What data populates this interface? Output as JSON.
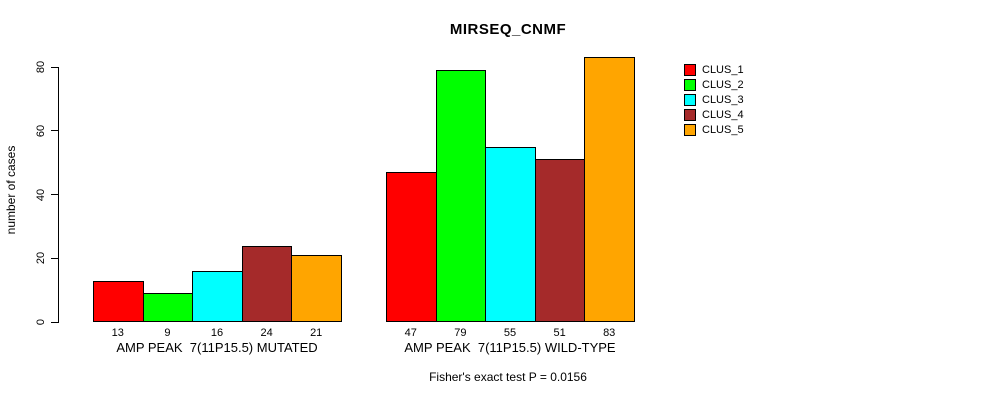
{
  "chart_data": {
    "type": "bar",
    "title": "MIRSEQ_CNMF",
    "ylabel": "number of cases",
    "ylim": [
      0,
      80
    ],
    "yticks": [
      0,
      20,
      40,
      60,
      80
    ],
    "grid": false,
    "legend_position": "top-right-outside",
    "bar_value_labels_shown": true,
    "categories": [
      "AMP PEAK  7(11P15.5) MUTATED",
      "AMP PEAK  7(11P15.5) WILD-TYPE"
    ],
    "series": [
      {
        "name": "CLUS_1",
        "color": "#FF0000",
        "values": [
          13,
          47
        ]
      },
      {
        "name": "CLUS_2",
        "color": "#00FF00",
        "values": [
          9,
          79
        ]
      },
      {
        "name": "CLUS_3",
        "color": "#00FFFF",
        "values": [
          16,
          55
        ]
      },
      {
        "name": "CLUS_4",
        "color": "#A52A2A",
        "values": [
          24,
          51
        ]
      },
      {
        "name": "CLUS_5",
        "color": "#FFA500",
        "values": [
          21,
          83
        ]
      }
    ],
    "annotation": "Fisher's exact test P = 0.0156"
  },
  "colors": {
    "axis": "#000000",
    "text": "#000000",
    "background": "#FFFFFF"
  }
}
